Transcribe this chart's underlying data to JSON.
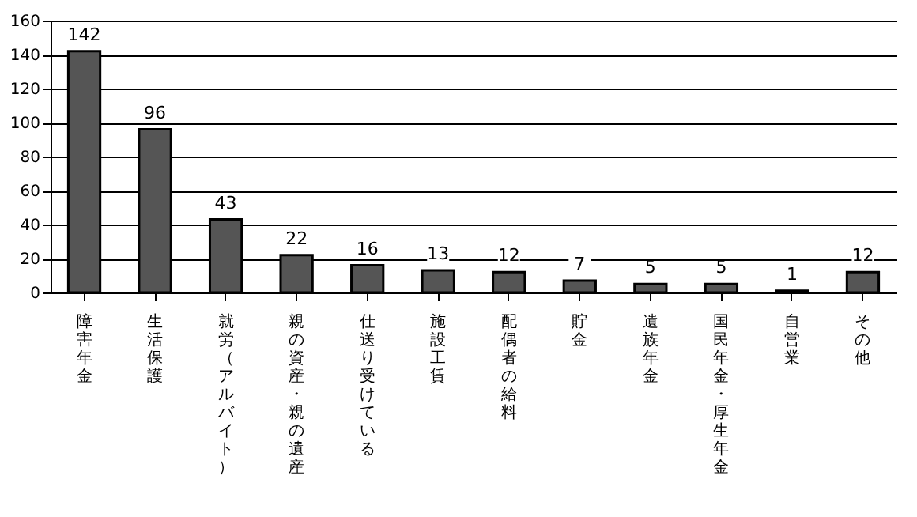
{
  "chart_data": {
    "type": "bar",
    "categories": [
      "障害年金",
      "生活保護",
      "就労（アルバイト）",
      "親の資産・親の遺産",
      "仕送り受けている",
      "施設工賃",
      "配偶者の給料",
      "貯金",
      "遺族年金",
      "国民年金・厚生年金",
      "自営業",
      "その他"
    ],
    "values": [
      142,
      96,
      43,
      22,
      16,
      13,
      12,
      7,
      5,
      5,
      1,
      12
    ],
    "color": "#555555",
    "ylim": [
      0,
      160
    ],
    "yticks": [
      0,
      20,
      40,
      60,
      80,
      100,
      120,
      140,
      160
    ],
    "grid": "y",
    "data_labels": true
  }
}
